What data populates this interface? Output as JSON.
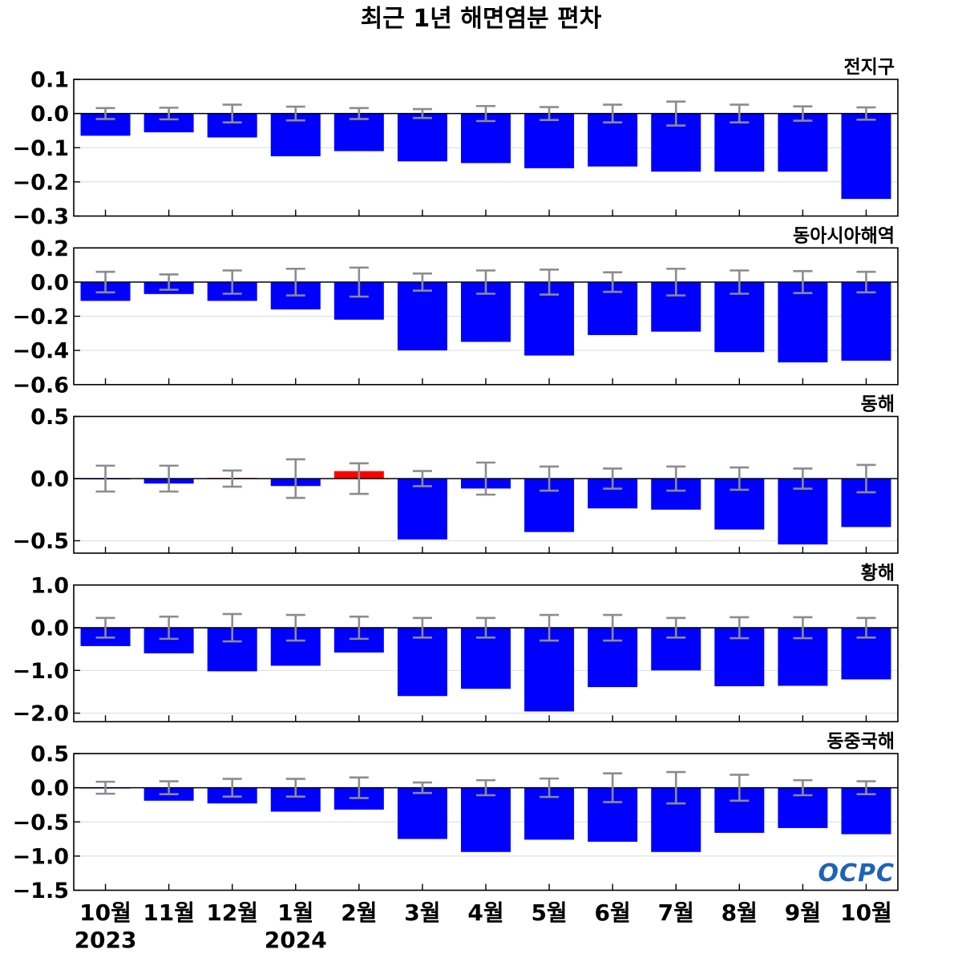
{
  "chart_data": {
    "type": "bar",
    "title": "최근 1년 해면염분 편차",
    "categories": [
      "10월",
      "11월",
      "12월",
      "1월",
      "2월",
      "3월",
      "4월",
      "5월",
      "6월",
      "7월",
      "8월",
      "9월",
      "10월"
    ],
    "year_labels": [
      {
        "index": 0,
        "label": "2023"
      },
      {
        "index": 3,
        "label": "2024"
      }
    ],
    "grid": true,
    "panels": [
      {
        "title": "전지구",
        "ylim": [
          -0.3,
          0.1
        ],
        "yticks": [
          0.1,
          0.0,
          -0.1,
          -0.2,
          -0.3
        ],
        "ytick_labels": [
          "0.1",
          "0.0",
          "−0.1",
          "−0.2",
          "−0.3"
        ],
        "values": [
          -0.065,
          -0.055,
          -0.07,
          -0.125,
          -0.11,
          -0.14,
          -0.145,
          -0.16,
          -0.155,
          -0.17,
          -0.17,
          -0.17,
          -0.25
        ],
        "errors": [
          0.016,
          0.017,
          0.026,
          0.02,
          0.016,
          0.013,
          0.022,
          0.019,
          0.026,
          0.035,
          0.026,
          0.021,
          0.018
        ]
      },
      {
        "title": "동아시아해역",
        "ylim": [
          -0.6,
          0.2
        ],
        "yticks": [
          0.2,
          0.0,
          -0.2,
          -0.4,
          -0.6
        ],
        "ytick_labels": [
          "0.2",
          "0.0",
          "−0.2",
          "−0.4",
          "−0.6"
        ],
        "values": [
          -0.11,
          -0.07,
          -0.11,
          -0.16,
          -0.22,
          -0.4,
          -0.35,
          -0.43,
          -0.31,
          -0.29,
          -0.41,
          -0.47,
          -0.46
        ],
        "errors": [
          0.06,
          0.045,
          0.068,
          0.078,
          0.085,
          0.05,
          0.068,
          0.073,
          0.057,
          0.078,
          0.068,
          0.064,
          0.06
        ]
      },
      {
        "title": "동해",
        "ylim": [
          -0.6,
          0.5
        ],
        "yticks": [
          0.5,
          0.0,
          -0.5
        ],
        "ytick_labels": [
          "0.5",
          "0.0",
          "−0.5"
        ],
        "values": [
          -0.005,
          -0.04,
          0.006,
          -0.06,
          0.06,
          -0.49,
          -0.08,
          -0.43,
          -0.24,
          -0.25,
          -0.41,
          -0.53,
          -0.39
        ],
        "errors": [
          0.104,
          0.104,
          0.065,
          0.155,
          0.123,
          0.061,
          0.129,
          0.097,
          0.081,
          0.097,
          0.09,
          0.081,
          0.11
        ]
      },
      {
        "title": "황해",
        "ylim": [
          -2.2,
          1.0
        ],
        "yticks": [
          1.0,
          0.0,
          -1.0,
          -2.0
        ],
        "ytick_labels": [
          "1.0",
          "0.0",
          "−1.0",
          "−2.0"
        ],
        "values": [
          -0.43,
          -0.6,
          -1.02,
          -0.89,
          -0.58,
          -1.6,
          -1.43,
          -1.96,
          -1.39,
          -1.0,
          -1.37,
          -1.36,
          -1.21
        ],
        "errors": [
          0.23,
          0.26,
          0.32,
          0.3,
          0.26,
          0.23,
          0.23,
          0.3,
          0.3,
          0.23,
          0.245,
          0.245,
          0.23
        ]
      },
      {
        "title": "동중국해",
        "ylim": [
          -1.5,
          0.5
        ],
        "yticks": [
          0.5,
          0.0,
          -0.5,
          -1.0,
          -1.5
        ],
        "ytick_labels": [
          "0.5",
          "0.0",
          "−0.5",
          "−1.0",
          "−1.5"
        ],
        "values": [
          -0.01,
          -0.19,
          -0.23,
          -0.35,
          -0.32,
          -0.75,
          -0.94,
          -0.76,
          -0.79,
          -0.94,
          -0.66,
          -0.59,
          -0.68
        ],
        "errors": [
          0.088,
          0.094,
          0.13,
          0.13,
          0.15,
          0.077,
          0.11,
          0.135,
          0.21,
          0.23,
          0.19,
          0.11,
          0.094
        ]
      }
    ]
  },
  "logo": {
    "text": "OCPC"
  },
  "colors": {
    "negative_bar": "#0000ff",
    "positive_bar": "#ff0000",
    "error_bar": "#8c8c8c",
    "zero_line": "#000000",
    "grid": "#dcdcdc",
    "frame": "#000000",
    "logo": "#1e63b8"
  }
}
